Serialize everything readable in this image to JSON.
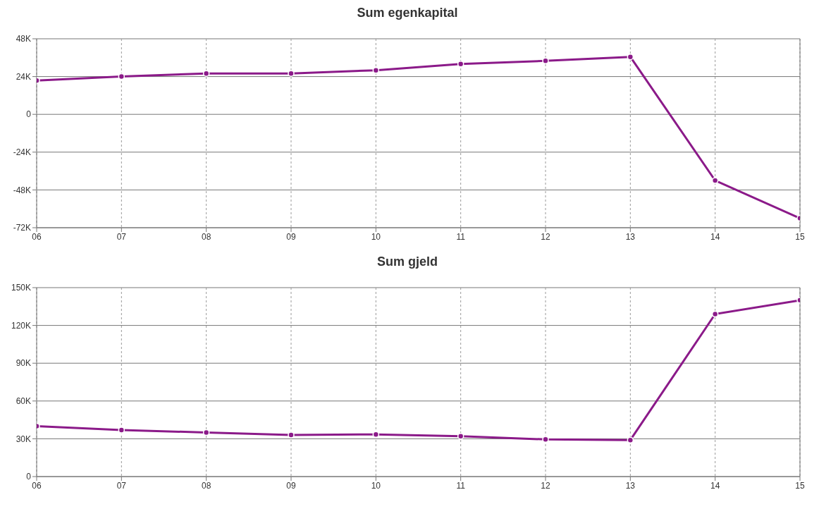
{
  "chart_data": [
    {
      "type": "line",
      "title": "Sum egenkapital",
      "categories": [
        "06",
        "07",
        "08",
        "09",
        "10",
        "11",
        "12",
        "13",
        "14",
        "15"
      ],
      "series": [
        {
          "color": "#8b1a89",
          "values": [
            21500,
            24000,
            26000,
            26000,
            28000,
            32000,
            34000,
            36500,
            -42000,
            -66000
          ]
        }
      ],
      "ylim": [
        -72000,
        48000
      ],
      "yticks": [
        {
          "value": -72000,
          "label": "-72K"
        },
        {
          "value": -48000,
          "label": "-48K"
        },
        {
          "value": -24000,
          "label": "-24K"
        },
        0,
        {
          "value": 24000,
          "label": "24K"
        },
        {
          "value": 48000,
          "label": "48K"
        }
      ],
      "grid": true,
      "marker": "circle",
      "line_style": "solid",
      "legend": false
    },
    {
      "type": "line",
      "title": "Sum gjeld",
      "categories": [
        "06",
        "07",
        "08",
        "09",
        "10",
        "11",
        "12",
        "13",
        "14",
        "15"
      ],
      "series": [
        {
          "color": "#8b1a89",
          "values": [
            40000,
            37000,
            35000,
            33000,
            33500,
            32000,
            29500,
            29000,
            129000,
            140000
          ]
        }
      ],
      "ylim": [
        0,
        150000
      ],
      "yticks": [
        0,
        {
          "value": 30000,
          "label": "30K"
        },
        {
          "value": 60000,
          "label": "60K"
        },
        {
          "value": 90000,
          "label": "90K"
        },
        {
          "value": 120000,
          "label": "120K"
        },
        {
          "value": 150000,
          "label": "150K"
        }
      ],
      "grid": true,
      "marker": "circle",
      "line_style": "solid",
      "legend": false
    }
  ]
}
